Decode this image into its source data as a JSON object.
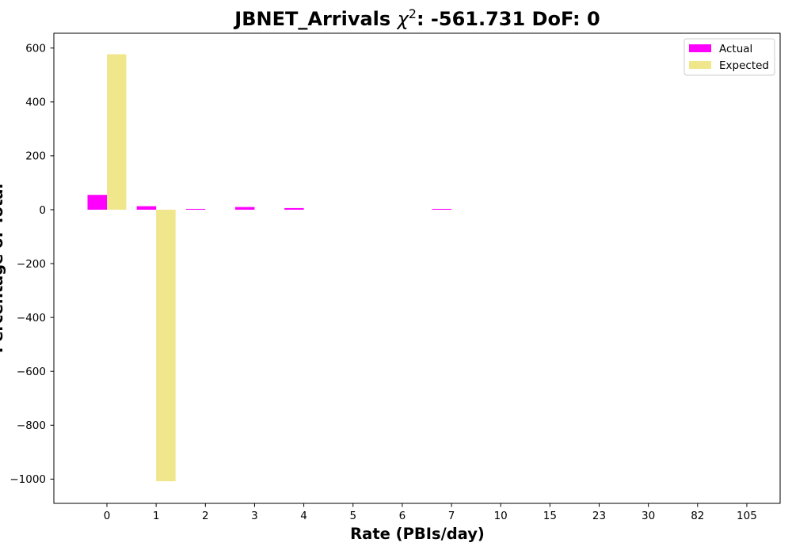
{
  "chart_data": {
    "type": "bar",
    "title": {
      "prefix": "JBNET_Arrivals ",
      "chi_symbol": "χ",
      "chi_exponent": "2",
      "suffix": ": -561.731 DoF: 0"
    },
    "xlabel": "Rate (PBIs/day)",
    "ylabel": "Percentage of Total",
    "categories": [
      "0",
      "1",
      "2",
      "3",
      "4",
      "5",
      "6",
      "7",
      "10",
      "15",
      "23",
      "30",
      "82",
      "105"
    ],
    "series": [
      {
        "name": "Actual",
        "color": "#ff00ff",
        "values": [
          55,
          13,
          3,
          10,
          6,
          0,
          0,
          3,
          0,
          0,
          0,
          0,
          0,
          0
        ]
      },
      {
        "name": "Expected",
        "color": "#f0e68c",
        "values": [
          577,
          -1008,
          0,
          0,
          0,
          0,
          0,
          0,
          0,
          0,
          0,
          0,
          0,
          0
        ]
      }
    ],
    "ylim": [
      -1090,
      655
    ],
    "yticks": [
      600,
      400,
      200,
      0,
      -200,
      -400,
      -600,
      -800,
      -1000
    ],
    "ytick_labels": [
      "600",
      "400",
      "200",
      "0",
      "−200",
      "−400",
      "−600",
      "−800",
      "−1000"
    ],
    "grid": false,
    "legend_position": "top-right"
  }
}
